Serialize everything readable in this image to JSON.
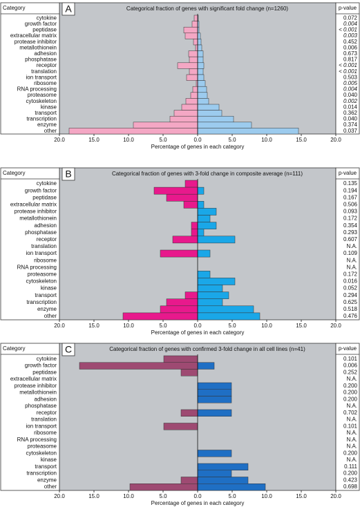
{
  "chart_data": [
    {
      "type": "bar",
      "panel_label": "A",
      "title": "Categorical fraction of genes with significant fold change (n=1260)",
      "xlabel": "Percentage of genes in each category",
      "category_header": "Category",
      "pvalue_header": "p-value",
      "categories": [
        "cytokine",
        "growth factor",
        "peptidase",
        "extracellular matrix",
        "protease inhibitor",
        "metallothionein",
        "adhesion",
        "phosphatase",
        "receptor",
        "translation",
        "ion transport",
        "ribosome",
        "RNA processing",
        "proteasome",
        "cytoskeleton",
        "kinase",
        "transport",
        "transcription",
        "enzyme",
        "other"
      ],
      "series": [
        {
          "color": "#f4a7c4",
          "values": [
            0.5,
            0.8,
            2.0,
            1.8,
            0.6,
            0.3,
            1.3,
            1.2,
            2.9,
            1.2,
            1.6,
            0.2,
            0.7,
            1.0,
            1.7,
            2.3,
            3.4,
            4.0,
            9.3,
            18.6
          ]
        },
        {
          "color": "#9ccbee",
          "values": [
            0.1,
            0.2,
            0.2,
            0.4,
            0.5,
            0.6,
            0.8,
            0.8,
            0.9,
            0.8,
            0.9,
            1.1,
            1.3,
            1.4,
            1.6,
            3.1,
            3.5,
            5.2,
            7.8,
            14.6
          ]
        }
      ],
      "p_values": [
        "0.072",
        "0.004",
        "< 0.001",
        "0.003",
        "0.452",
        "0.006",
        "0.673",
        "0.817",
        "< 0.001",
        "< 0.001",
        "0.503",
        "0.005",
        "0.004",
        "0.040",
        "0.002",
        "0.014",
        "0.362",
        "0.040",
        "0.374",
        "0.037"
      ],
      "highlighted": [
        1,
        2,
        3,
        8,
        9,
        11,
        12,
        14
      ],
      "highlight_color": "#e0302a",
      "xlim": [
        0,
        20
      ],
      "xticks": [
        {
          "value": 0,
          "label": "0.0"
        },
        {
          "value": 5,
          "label": "5.0"
        },
        {
          "value": 10,
          "label": "10.0"
        },
        {
          "value": 15,
          "label": "15.0"
        },
        {
          "value": 20,
          "label": "20.0"
        }
      ]
    },
    {
      "type": "bar",
      "panel_label": "B",
      "title": "Categorical fraction of genes with 3-fold change in composite average (n=111)",
      "xlabel": "Percentage of genes in each category",
      "category_header": "Category",
      "pvalue_header": "p-value",
      "categories": [
        "cytokine",
        "growth factor",
        "peptidase",
        "extracellular matrix",
        "protease inhibitor",
        "metallothionein",
        "adhesion",
        "phosphatase",
        "receptor",
        "translation",
        "ion transport",
        "ribosome",
        "RNA processing",
        "proteasome",
        "cytoskeleton",
        "kinase",
        "transport",
        "transcription",
        "enzyme",
        "other"
      ],
      "series": [
        {
          "color": "#e8198c",
          "values": [
            1.8,
            6.3,
            4.5,
            2.0,
            0,
            0,
            0.9,
            0.9,
            3.6,
            0,
            5.4,
            0,
            0,
            0,
            0,
            0,
            1.8,
            4.5,
            5.4,
            10.8
          ]
        },
        {
          "color": "#1aa7e8",
          "values": [
            0,
            0.9,
            0,
            0.9,
            2.7,
            1.8,
            2.7,
            0.9,
            5.4,
            0,
            1.8,
            0,
            0,
            1.8,
            5.4,
            3.6,
            4.5,
            3.6,
            8.1,
            9.0
          ]
        }
      ],
      "p_values": [
        "0.135",
        "0.194",
        "0.167",
        "0.506",
        "0.093",
        "0.172",
        "0.354",
        "0.293",
        "0.607",
        "N.A.",
        "0.109",
        "N.A.",
        "N.A.",
        "0.172",
        "0.016",
        "0.052",
        "0.294",
        "0.625",
        "0.518",
        "0.476"
      ],
      "xlim": [
        0,
        20
      ],
      "xticks": [
        {
          "value": 0,
          "label": "0.0"
        },
        {
          "value": 5,
          "label": "5.0"
        },
        {
          "value": 10,
          "label": "10.0"
        },
        {
          "value": 15,
          "label": "15.0"
        },
        {
          "value": 20,
          "label": "20.0"
        }
      ]
    },
    {
      "type": "bar",
      "panel_label": "C",
      "title": "Categorical fraction of genes with confirmed 3-fold change in all cell lines (n=41)",
      "xlabel": "Percentage of genes in each category",
      "category_header": "Category",
      "pvalue_header": "p-value",
      "categories": [
        "cytokine",
        "growth factor",
        "peptidase",
        "extracellular matrix",
        "protease inhibitor",
        "metallothionein",
        "adhesion",
        "phosphatase",
        "receptor",
        "translation",
        "ion transport",
        "ribosome",
        "RNA processing",
        "proteasome",
        "cytoskeleton",
        "kinase",
        "transport",
        "transcription",
        "enzyme",
        "other"
      ],
      "series": [
        {
          "color": "#9e4a72",
          "values": [
            4.9,
            17.1,
            2.4,
            0,
            0,
            0,
            0,
            0,
            2.4,
            0,
            4.9,
            0,
            0,
            0,
            0,
            0,
            0,
            0,
            2.4,
            9.8
          ]
        },
        {
          "color": "#1f6fc4",
          "values": [
            0,
            2.4,
            0,
            0,
            4.9,
            4.9,
            4.9,
            0,
            4.9,
            0,
            0,
            0,
            0,
            0,
            4.9,
            0,
            7.3,
            4.9,
            7.3,
            9.8
          ]
        }
      ],
      "p_values": [
        "0.101",
        "0.006",
        "0.252",
        "N.A.",
        "0.200",
        "0.200",
        "0.200",
        "N.A.",
        "0.702",
        "N.A.",
        "0.101",
        "N.A.",
        "N.A.",
        "N.A.",
        "0.200",
        "N.A.",
        "0.111",
        "0.200",
        "0.423",
        "0.698"
      ],
      "xlim": [
        0,
        20
      ],
      "xticks": [
        {
          "value": 0,
          "label": "0.0"
        },
        {
          "value": 5,
          "label": "5.0"
        },
        {
          "value": 10,
          "label": "10.0"
        },
        {
          "value": 15,
          "label": "15.0"
        },
        {
          "value": 20,
          "label": "20.0"
        }
      ]
    }
  ]
}
